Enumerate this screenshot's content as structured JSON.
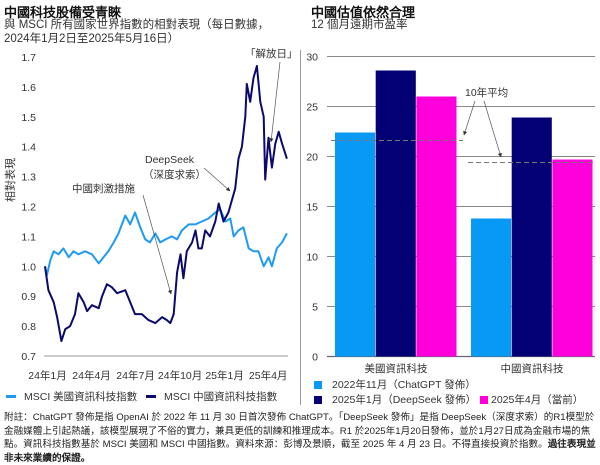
{
  "left": {
    "title": "中國科技股備受青睞",
    "subtitle": "與 MSCI 所有國家世界指數的相對表現（每日數據，2024年1月2日至2025年5月16日）",
    "annotations": {
      "liberation_day": "「解放日」",
      "deepseek_line1": "DeepSeek",
      "deepseek_line2": "（深度求索）",
      "stimulus": "中國刺激措施"
    }
  },
  "right": {
    "title": "中國估值依然合理",
    "subtitle": "12 個月遠期市盈率",
    "annotation_avg": "10年平均"
  },
  "chart_data": [
    {
      "type": "line",
      "ylabel": "相對表現",
      "ylim": [
        0.7,
        1.7
      ],
      "yticks": [
        "0.7",
        "0.8",
        "0.9",
        "1.0",
        "1.1",
        "1.2",
        "1.3",
        "1.4",
        "1.5",
        "1.6",
        "1.7"
      ],
      "xlim": [
        "2024-01-01",
        "2025-05-20"
      ],
      "xticks": [
        {
          "date": "2024-01-01",
          "label": "24年1月"
        },
        {
          "date": "2024-04-01",
          "label": "24年4月"
        },
        {
          "date": "2024-07-01",
          "label": "24年7月"
        },
        {
          "date": "2024-10-01",
          "label": "24年10月"
        },
        {
          "date": "2025-01-01",
          "label": "25年1月"
        },
        {
          "date": "2025-04-01",
          "label": "25年4月"
        }
      ],
      "grid": false,
      "legend": "bottom",
      "series": [
        {
          "name": "MSCI 美國資訊科技指數",
          "color": "#1e9bf0",
          "points": [
            [
              "2024-01-02",
              1.0
            ],
            [
              "2024-01-06",
              0.97
            ],
            [
              "2024-01-13",
              1.02
            ],
            [
              "2024-01-20",
              1.05
            ],
            [
              "2024-01-30",
              1.04
            ],
            [
              "2024-02-09",
              1.06
            ],
            [
              "2024-02-20",
              1.03
            ],
            [
              "2024-03-01",
              1.05
            ],
            [
              "2024-03-11",
              1.04
            ],
            [
              "2024-03-25",
              1.05
            ],
            [
              "2024-04-08",
              1.04
            ],
            [
              "2024-04-22",
              1.01
            ],
            [
              "2024-05-02",
              1.03
            ],
            [
              "2024-05-12",
              1.05
            ],
            [
              "2024-05-23",
              1.08
            ],
            [
              "2024-06-02",
              1.11
            ],
            [
              "2024-06-16",
              1.17
            ],
            [
              "2024-06-26",
              1.14
            ],
            [
              "2024-07-06",
              1.18
            ],
            [
              "2024-07-17",
              1.13
            ],
            [
              "2024-07-27",
              1.09
            ],
            [
              "2024-08-06",
              1.08
            ],
            [
              "2024-08-17",
              1.11
            ],
            [
              "2024-08-27",
              1.08
            ],
            [
              "2024-09-07",
              1.09
            ],
            [
              "2024-09-20",
              1.1
            ],
            [
              "2024-10-01",
              1.09
            ],
            [
              "2024-10-11",
              1.12
            ],
            [
              "2024-10-25",
              1.14
            ],
            [
              "2024-11-08",
              1.14
            ],
            [
              "2024-11-21",
              1.15
            ],
            [
              "2024-12-05",
              1.16
            ],
            [
              "2024-12-19",
              1.18
            ],
            [
              "2024-12-29",
              1.19
            ],
            [
              "2025-01-09",
              1.15
            ],
            [
              "2025-01-19",
              1.16
            ],
            [
              "2025-01-26",
              1.1
            ],
            [
              "2025-02-05",
              1.12
            ],
            [
              "2025-02-15",
              1.13
            ],
            [
              "2025-02-26",
              1.06
            ],
            [
              "2025-03-08",
              1.05
            ],
            [
              "2025-03-18",
              1.05
            ],
            [
              "2025-03-29",
              1.0
            ],
            [
              "2025-04-08",
              1.03
            ],
            [
              "2025-04-15",
              1.0
            ],
            [
              "2025-04-25",
              1.06
            ],
            [
              "2025-05-06",
              1.08
            ],
            [
              "2025-05-16",
              1.11
            ]
          ]
        },
        {
          "name": "MSCI 中國資訊科技指數",
          "color": "#0a0a6e",
          "points": [
            [
              "2024-01-02",
              1.0
            ],
            [
              "2024-01-09",
              0.92
            ],
            [
              "2024-01-20",
              0.88
            ],
            [
              "2024-01-27",
              0.83
            ],
            [
              "2024-02-05",
              0.75
            ],
            [
              "2024-02-13",
              0.79
            ],
            [
              "2024-02-23",
              0.8
            ],
            [
              "2024-03-04",
              0.84
            ],
            [
              "2024-03-11",
              0.91
            ],
            [
              "2024-03-22",
              0.88
            ],
            [
              "2024-03-29",
              0.85
            ],
            [
              "2024-04-08",
              0.87
            ],
            [
              "2024-04-22",
              0.86
            ],
            [
              "2024-04-29",
              0.9
            ],
            [
              "2024-05-09",
              0.94
            ],
            [
              "2024-05-19",
              0.93
            ],
            [
              "2024-05-30",
              0.91
            ],
            [
              "2024-06-16",
              0.92
            ],
            [
              "2024-06-26",
              0.88
            ],
            [
              "2024-07-06",
              0.84
            ],
            [
              "2024-07-20",
              0.84
            ],
            [
              "2024-08-03",
              0.82
            ],
            [
              "2024-08-17",
              0.81
            ],
            [
              "2024-08-31",
              0.83
            ],
            [
              "2024-09-10",
              0.82
            ],
            [
              "2024-09-17",
              0.81
            ],
            [
              "2024-09-24",
              0.84
            ],
            [
              "2024-10-01",
              0.98
            ],
            [
              "2024-10-08",
              1.04
            ],
            [
              "2024-10-14",
              0.96
            ],
            [
              "2024-10-21",
              1.05
            ],
            [
              "2024-11-01",
              1.08
            ],
            [
              "2024-11-08",
              1.12
            ],
            [
              "2024-11-14",
              1.06
            ],
            [
              "2024-11-21",
              1.06
            ],
            [
              "2024-11-28",
              1.12
            ],
            [
              "2024-12-08",
              1.1
            ],
            [
              "2024-12-19",
              1.15
            ],
            [
              "2024-12-26",
              1.21
            ],
            [
              "2025-01-05",
              1.15
            ],
            [
              "2025-01-15",
              1.18
            ],
            [
              "2025-01-22",
              1.22
            ],
            [
              "2025-01-29",
              1.26
            ],
            [
              "2025-02-05",
              1.36
            ],
            [
              "2025-02-12",
              1.4
            ],
            [
              "2025-02-19",
              1.5
            ],
            [
              "2025-02-22",
              1.61
            ],
            [
              "2025-03-01",
              1.55
            ],
            [
              "2025-03-08",
              1.63
            ],
            [
              "2025-03-15",
              1.67
            ],
            [
              "2025-03-22",
              1.55
            ],
            [
              "2025-03-29",
              1.5
            ],
            [
              "2025-04-01",
              1.29
            ],
            [
              "2025-04-08",
              1.43
            ],
            [
              "2025-04-15",
              1.33
            ],
            [
              "2025-04-22",
              1.41
            ],
            [
              "2025-04-29",
              1.45
            ],
            [
              "2025-05-06",
              1.41
            ],
            [
              "2025-05-16",
              1.36
            ]
          ]
        }
      ]
    },
    {
      "type": "bar",
      "ylim": [
        0,
        30
      ],
      "yticks": [
        "0",
        "5",
        "10",
        "15",
        "20",
        "25",
        "30"
      ],
      "grid": true,
      "legend": "bottom",
      "categories": [
        "美國資訊科技",
        "中國資訊科技"
      ],
      "series": [
        {
          "name": "2022年11月（ChatGPT 發佈）",
          "color": "#0899f5",
          "values": [
            22.4,
            13.8
          ]
        },
        {
          "name": "2025年1月（DeepSeek 發佈）",
          "color": "#020072",
          "values": [
            28.6,
            23.9
          ]
        },
        {
          "name": "2025年4月（當前）",
          "color": "#ff00dd",
          "values": [
            26.0,
            19.7
          ]
        }
      ],
      "ten_year_average": [
        21.6,
        19.4
      ]
    }
  ],
  "footnote": {
    "text": "附註：ChatGPT 發佈是指 OpenAI 於 2022 年 11 月 30 日首次發佈 ChatGPT。「DeepSeek 發佈」是指 DeepSeek（深度求索）的R1模型於金融媒體上引起熱議，該模型展現了不俗的實力，兼具更低的訓練和推理成本。R1 於2025年1月20日發佈，並於1月27日成為金融市場的焦點。資訊科技指數基於 MSCI 美國和 MSCI 中國指數。資料來源：彭博及景順，截至 2025 年 4 月 23 日。不得直接投資於指數。",
    "bold": "過往表現並非未來業績的保證。"
  }
}
